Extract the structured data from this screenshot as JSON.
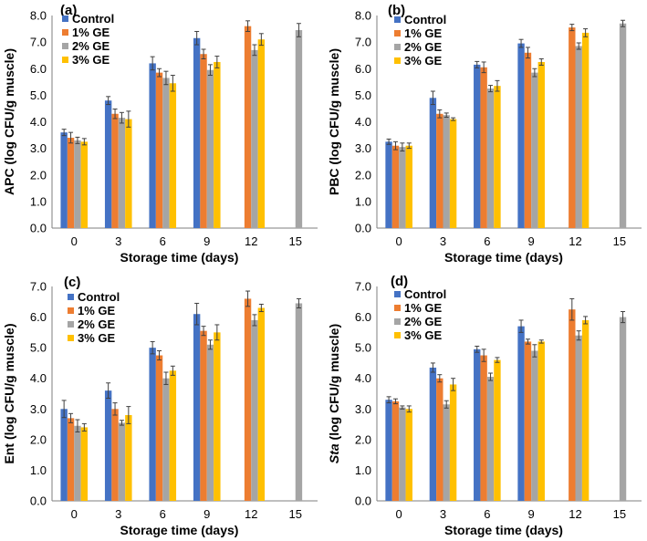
{
  "colors": {
    "control": "#4472C4",
    "ge1": "#ED7D31",
    "ge2": "#A5A5A5",
    "ge3": "#FFC000",
    "axis": "#7f7f7f",
    "errorbar": "#404040"
  },
  "chart_data": [
    {
      "type": "bar",
      "panel_label": "(a)",
      "ylabel": "APC (log CFU/g muscle)",
      "ylabel_italic_prefix": "",
      "xlabel": "Storage time (days)",
      "categories": [
        "0",
        "3",
        "6",
        "9",
        "12",
        "15"
      ],
      "ylim": [
        0,
        8
      ],
      "ytick_labels": [
        "0.0",
        "1.0",
        "2.0",
        "3.0",
        "4.0",
        "5.0",
        "6.0",
        "7.0",
        "8.0"
      ],
      "legend": [
        "Control",
        "1% GE",
        "2% GE",
        "3% GE"
      ],
      "legend_position": "top-left",
      "series": [
        {
          "name": "Control",
          "values": [
            3.6,
            4.8,
            6.2,
            7.15,
            null,
            null
          ],
          "errors": [
            0.12,
            0.15,
            0.25,
            0.25,
            null,
            null
          ]
        },
        {
          "name": "1% GE",
          "values": [
            3.4,
            4.3,
            5.85,
            6.55,
            7.6,
            null
          ],
          "errors": [
            0.2,
            0.18,
            0.15,
            0.18,
            0.2,
            null
          ]
        },
        {
          "name": "2% GE",
          "values": [
            3.3,
            4.15,
            5.65,
            5.95,
            6.7,
            7.45
          ],
          "errors": [
            0.12,
            0.2,
            0.25,
            0.2,
            0.2,
            0.25
          ]
        },
        {
          "name": "3% GE",
          "values": [
            3.25,
            4.1,
            5.45,
            6.25,
            7.1,
            null
          ],
          "errors": [
            0.12,
            0.3,
            0.3,
            0.22,
            0.22,
            null
          ]
        }
      ]
    },
    {
      "type": "bar",
      "panel_label": "(b)",
      "ylabel": "PBC (log CFU/g muscle)",
      "ylabel_italic_prefix": "",
      "xlabel": "Storage time (days)",
      "categories": [
        "0",
        "3",
        "6",
        "9",
        "12",
        "15"
      ],
      "ylim": [
        0,
        8
      ],
      "ytick_labels": [
        "0.0",
        "1.0",
        "2.0",
        "3.0",
        "4.0",
        "5.0",
        "6.0",
        "7.0",
        "8.0"
      ],
      "legend": [
        "Control",
        "1% GE",
        "2% GE",
        "3% GE"
      ],
      "legend_position": "top-left",
      "series": [
        {
          "name": "Control",
          "values": [
            3.25,
            4.9,
            6.15,
            6.95,
            null,
            null
          ],
          "errors": [
            0.1,
            0.25,
            0.12,
            0.15,
            null,
            null
          ]
        },
        {
          "name": "1% GE",
          "values": [
            3.1,
            4.3,
            6.05,
            6.6,
            7.55,
            null
          ],
          "errors": [
            0.15,
            0.15,
            0.2,
            0.2,
            0.12,
            null
          ]
        },
        {
          "name": "2% GE",
          "values": [
            3.05,
            4.25,
            5.25,
            5.85,
            6.85,
            7.7
          ],
          "errors": [
            0.15,
            0.08,
            0.12,
            0.15,
            0.12,
            0.12
          ]
        },
        {
          "name": "3% GE",
          "values": [
            3.1,
            4.1,
            5.35,
            6.25,
            7.35,
            null
          ],
          "errors": [
            0.1,
            0.05,
            0.2,
            0.12,
            0.15,
            null
          ]
        }
      ]
    },
    {
      "type": "bar",
      "panel_label": "(c)",
      "ylabel": "Ent (log CFU/g muscle)",
      "ylabel_italic_prefix": "",
      "xlabel": "Storage time (days)",
      "categories": [
        "0",
        "3",
        "6",
        "9",
        "12",
        "15"
      ],
      "ylim": [
        0,
        7
      ],
      "ytick_labels": [
        "0.0",
        "1.0",
        "2.0",
        "3.0",
        "4.0",
        "5.0",
        "6.0",
        "7.0"
      ],
      "legend": [
        "Control",
        "1% GE",
        "2% GE",
        "3% GE"
      ],
      "legend_position": "top-left",
      "series": [
        {
          "name": "Control",
          "values": [
            3.0,
            3.6,
            5.0,
            6.1,
            null,
            null
          ],
          "errors": [
            0.28,
            0.25,
            0.2,
            0.35,
            null,
            null
          ]
        },
        {
          "name": "1% GE",
          "values": [
            2.7,
            3.0,
            4.75,
            5.55,
            6.6,
            null
          ],
          "errors": [
            0.15,
            0.2,
            0.15,
            0.15,
            0.25,
            null
          ]
        },
        {
          "name": "2% GE",
          "values": [
            2.45,
            2.55,
            4.0,
            5.1,
            5.9,
            6.45
          ],
          "errors": [
            0.2,
            0.08,
            0.2,
            0.15,
            0.18,
            0.15
          ]
        },
        {
          "name": "3% GE",
          "values": [
            2.4,
            2.8,
            4.25,
            5.5,
            6.3,
            null
          ],
          "errors": [
            0.12,
            0.28,
            0.15,
            0.25,
            0.12,
            null
          ]
        }
      ]
    },
    {
      "type": "bar",
      "panel_label": "(d)",
      "ylabel": " (log CFU/g muscle)",
      "ylabel_italic_prefix": "Sta",
      "xlabel": "Storage time (days)",
      "categories": [
        "0",
        "3",
        "6",
        "9",
        "12",
        "15"
      ],
      "ylim": [
        0,
        7
      ],
      "ytick_labels": [
        "0.0",
        "1.0",
        "2.0",
        "3.0",
        "4.0",
        "5.0",
        "6.0",
        "7.0"
      ],
      "legend": [
        "Control",
        "1% GE",
        "2% GE",
        "3% GE"
      ],
      "legend_position": "top-left",
      "series": [
        {
          "name": "Control",
          "values": [
            3.3,
            4.35,
            4.95,
            5.7,
            null,
            null
          ],
          "errors": [
            0.1,
            0.15,
            0.1,
            0.2,
            null,
            null
          ]
        },
        {
          "name": "1% GE",
          "values": [
            3.25,
            4.0,
            4.75,
            5.2,
            6.25,
            null
          ],
          "errors": [
            0.08,
            0.12,
            0.2,
            0.08,
            0.35,
            null
          ]
        },
        {
          "name": "2% GE",
          "values": [
            3.05,
            3.15,
            4.05,
            4.9,
            5.4,
            6.0
          ],
          "errors": [
            0.05,
            0.12,
            0.12,
            0.2,
            0.15,
            0.18
          ]
        },
        {
          "name": "3% GE",
          "values": [
            3.0,
            3.8,
            4.6,
            5.2,
            5.9,
            null
          ],
          "errors": [
            0.1,
            0.2,
            0.08,
            0.05,
            0.12,
            null
          ]
        }
      ]
    }
  ]
}
